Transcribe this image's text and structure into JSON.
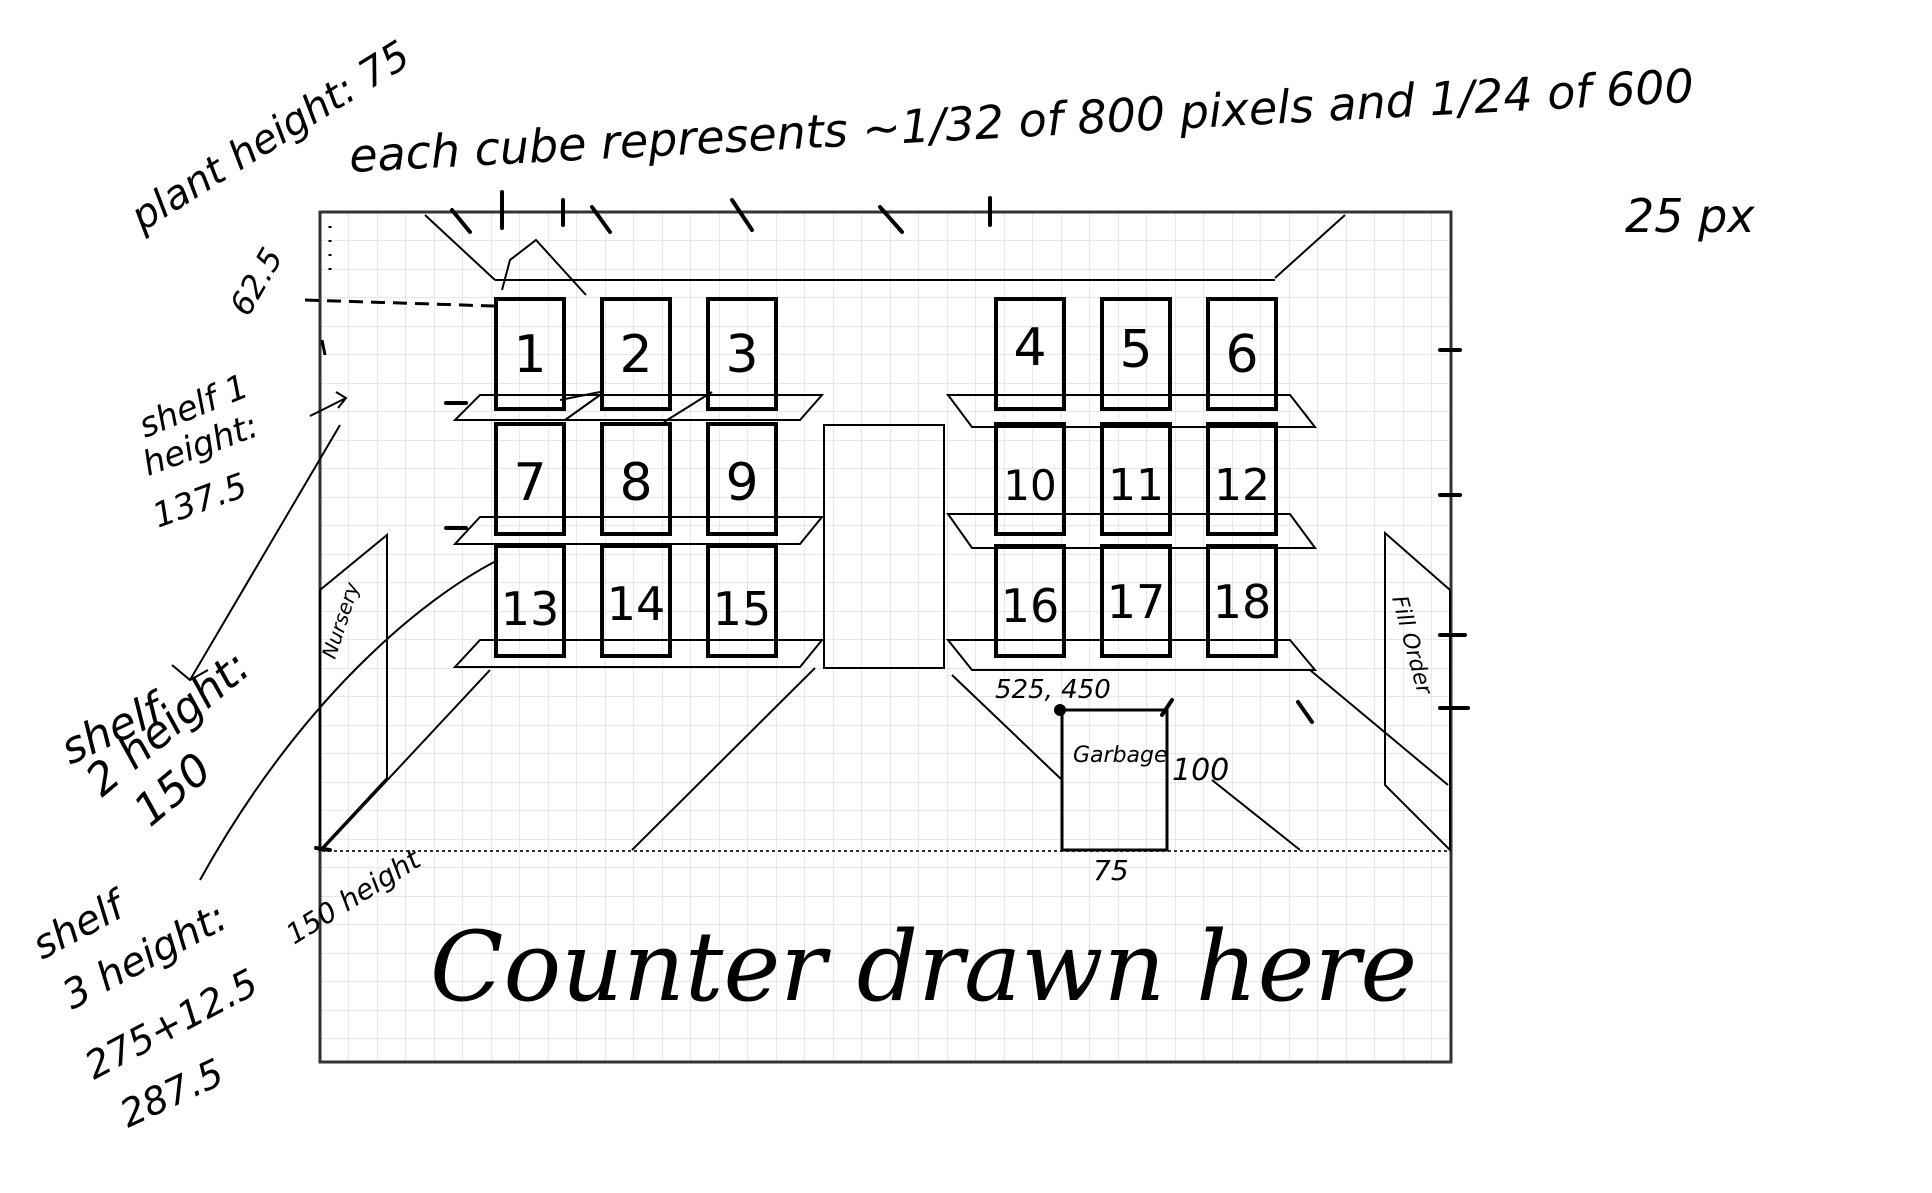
{
  "notes": {
    "plant_height": "plant height: 75",
    "scale_note": "each cube represents ~1/32 of 800 pixels and 1/24 of 600",
    "px_note": "25 px",
    "top_offset": "62.5",
    "shelf1": [
      "shelf 1",
      "height:",
      "137.5"
    ],
    "shelf2": [
      "shelf",
      "2 height:",
      "150"
    ],
    "shelf3": [
      "shelf",
      "3 height:",
      "275+12.5",
      "287.5"
    ],
    "floor_height": "150 height",
    "garbage_pos": "525, 450",
    "garbage_h": "100",
    "garbage_w": "75",
    "counter": "Counter drawn here"
  },
  "labels": {
    "nursery": "Nursery",
    "fill_order": "Fill Order",
    "garbage": "Garbage"
  },
  "slots": [
    "1",
    "2",
    "3",
    "4",
    "5",
    "6",
    "7",
    "8",
    "9",
    "10",
    "11",
    "12",
    "13",
    "14",
    "15",
    "16",
    "17",
    "18"
  ],
  "style": {
    "ink": "#000000",
    "grid": "#cfcfcf",
    "paper": "#ffffff"
  }
}
